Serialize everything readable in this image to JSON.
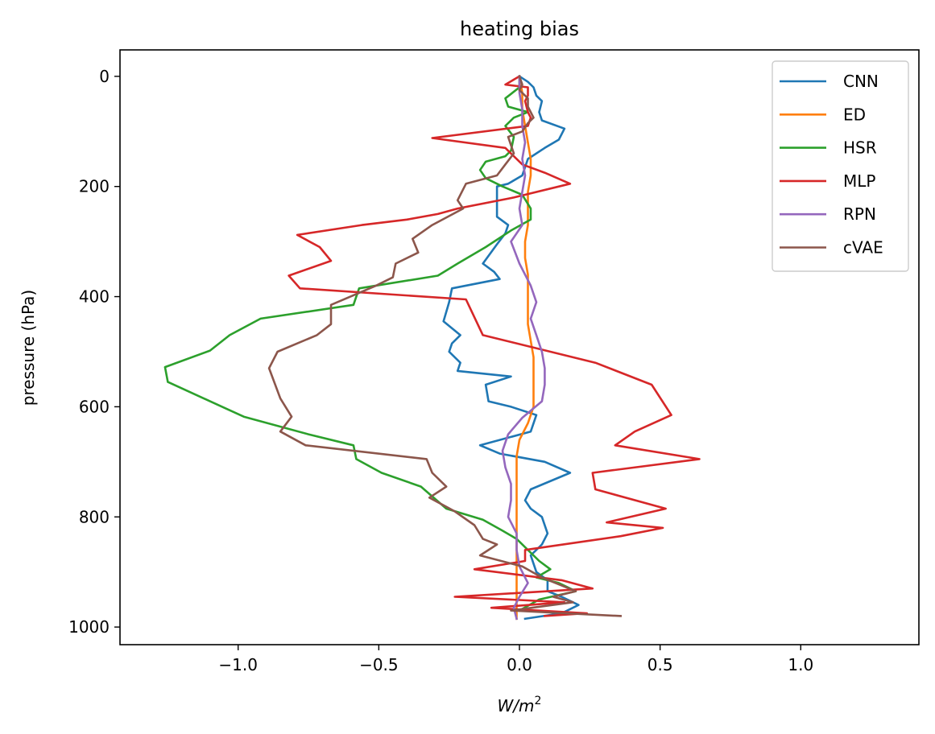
{
  "chart_data": {
    "type": "line",
    "title": "heating bias",
    "xlabel": "W/m²",
    "xlabel_parts": {
      "base": "W/m",
      "sup": "2"
    },
    "ylabel": "pressure (hPa)",
    "xlim": [
      -1.42,
      1.42
    ],
    "ylim": [
      1032,
      -48
    ],
    "y_inverted": true,
    "xticks": [
      -1.0,
      -0.5,
      0.0,
      0.5,
      1.0
    ],
    "xtick_labels": [
      "−1.0",
      "−0.5",
      "0.0",
      "0.5",
      "1.0"
    ],
    "yticks": [
      0,
      200,
      400,
      600,
      800,
      1000
    ],
    "ytick_labels": [
      "0",
      "200",
      "400",
      "600",
      "800",
      "1000"
    ],
    "grid": false,
    "legend_position": "top-right",
    "series": [
      {
        "name": "CNN",
        "color": "#1f77b4",
        "points": [
          [
            0.0,
            0
          ],
          [
            0.03,
            10
          ],
          [
            0.05,
            20
          ],
          [
            0.06,
            35
          ],
          [
            0.08,
            45
          ],
          [
            0.07,
            65
          ],
          [
            0.08,
            80
          ],
          [
            0.16,
            95
          ],
          [
            0.14,
            115
          ],
          [
            0.09,
            130
          ],
          [
            0.03,
            150
          ],
          [
            0.02,
            165
          ],
          [
            0.01,
            180
          ],
          [
            -0.04,
            195
          ],
          [
            -0.08,
            200
          ],
          [
            -0.08,
            230
          ],
          [
            -0.08,
            255
          ],
          [
            -0.04,
            270
          ],
          [
            -0.05,
            285
          ],
          [
            -0.08,
            305
          ],
          [
            -0.13,
            340
          ],
          [
            -0.09,
            355
          ],
          [
            -0.07,
            368
          ],
          [
            -0.24,
            385
          ],
          [
            -0.25,
            410
          ],
          [
            -0.27,
            445
          ],
          [
            -0.21,
            470
          ],
          [
            -0.24,
            485
          ],
          [
            -0.25,
            500
          ],
          [
            -0.21,
            520
          ],
          [
            -0.22,
            535
          ],
          [
            -0.03,
            545
          ],
          [
            -0.12,
            560
          ],
          [
            -0.11,
            590
          ],
          [
            -0.03,
            600
          ],
          [
            0.06,
            615
          ],
          [
            0.04,
            645
          ],
          [
            -0.14,
            670
          ],
          [
            -0.07,
            685
          ],
          [
            0.09,
            700
          ],
          [
            0.18,
            720
          ],
          [
            0.04,
            750
          ],
          [
            0.02,
            770
          ],
          [
            0.04,
            785
          ],
          [
            0.08,
            800
          ],
          [
            0.1,
            830
          ],
          [
            0.08,
            850
          ],
          [
            0.04,
            870
          ],
          [
            0.06,
            900
          ],
          [
            0.1,
            915
          ],
          [
            0.1,
            935
          ],
          [
            0.15,
            945
          ],
          [
            0.21,
            960
          ],
          [
            0.15,
            975
          ],
          [
            0.02,
            985
          ]
        ]
      },
      {
        "name": "ED",
        "color": "#ff7f0e",
        "points": [
          [
            0.0,
            0
          ],
          [
            0.01,
            30
          ],
          [
            0.01,
            60
          ],
          [
            0.02,
            90
          ],
          [
            0.03,
            120
          ],
          [
            0.04,
            150
          ],
          [
            0.04,
            180
          ],
          [
            0.03,
            210
          ],
          [
            0.03,
            240
          ],
          [
            0.03,
            270
          ],
          [
            0.02,
            300
          ],
          [
            0.02,
            330
          ],
          [
            0.03,
            360
          ],
          [
            0.03,
            390
          ],
          [
            0.03,
            420
          ],
          [
            0.03,
            450
          ],
          [
            0.04,
            480
          ],
          [
            0.05,
            510
          ],
          [
            0.05,
            540
          ],
          [
            0.05,
            570
          ],
          [
            0.05,
            600
          ],
          [
            0.03,
            630
          ],
          [
            0.0,
            660
          ],
          [
            -0.01,
            690
          ],
          [
            -0.01,
            720
          ],
          [
            -0.01,
            750
          ],
          [
            -0.01,
            780
          ],
          [
            -0.01,
            810
          ],
          [
            -0.01,
            840
          ],
          [
            -0.01,
            870
          ],
          [
            -0.01,
            900
          ],
          [
            -0.01,
            930
          ],
          [
            -0.01,
            960
          ],
          [
            -0.01,
            985
          ]
        ]
      },
      {
        "name": "HSR",
        "color": "#2ca02c",
        "points": [
          [
            0.0,
            0
          ],
          [
            0.0,
            20
          ],
          [
            -0.05,
            40
          ],
          [
            -0.04,
            55
          ],
          [
            0.03,
            65
          ],
          [
            -0.02,
            75
          ],
          [
            -0.05,
            90
          ],
          [
            -0.02,
            110
          ],
          [
            -0.03,
            135
          ],
          [
            -0.05,
            145
          ],
          [
            -0.12,
            155
          ],
          [
            -0.14,
            170
          ],
          [
            -0.12,
            185
          ],
          [
            -0.06,
            200
          ],
          [
            0.01,
            215
          ],
          [
            0.04,
            240
          ],
          [
            0.04,
            260
          ],
          [
            -0.03,
            280
          ],
          [
            -0.12,
            310
          ],
          [
            -0.22,
            340
          ],
          [
            -0.29,
            362
          ],
          [
            -0.57,
            385
          ],
          [
            -0.59,
            415
          ],
          [
            -0.92,
            440
          ],
          [
            -1.03,
            470
          ],
          [
            -1.1,
            498
          ],
          [
            -1.26,
            528
          ],
          [
            -1.25,
            555
          ],
          [
            -1.1,
            590
          ],
          [
            -0.98,
            618
          ],
          [
            -0.75,
            650
          ],
          [
            -0.59,
            670
          ],
          [
            -0.58,
            695
          ],
          [
            -0.49,
            720
          ],
          [
            -0.35,
            745
          ],
          [
            -0.26,
            785
          ],
          [
            -0.13,
            805
          ],
          [
            -0.06,
            825
          ],
          [
            -0.01,
            840
          ],
          [
            0.03,
            860
          ],
          [
            0.07,
            880
          ],
          [
            0.11,
            895
          ],
          [
            0.06,
            910
          ],
          [
            0.14,
            920
          ],
          [
            0.2,
            935
          ],
          [
            0.07,
            950
          ],
          [
            0.0,
            970
          ]
        ]
      },
      {
        "name": "MLP",
        "color": "#d62728",
        "points": [
          [
            0.0,
            0
          ],
          [
            -0.05,
            15
          ],
          [
            0.03,
            20
          ],
          [
            0.03,
            35
          ],
          [
            0.02,
            45
          ],
          [
            0.03,
            65
          ],
          [
            0.04,
            75
          ],
          [
            0.03,
            90
          ],
          [
            -0.31,
            112
          ],
          [
            -0.05,
            130
          ],
          [
            -0.02,
            145
          ],
          [
            0.01,
            160
          ],
          [
            0.09,
            175
          ],
          [
            0.18,
            195
          ],
          [
            -0.02,
            220
          ],
          [
            -0.22,
            240
          ],
          [
            -0.29,
            250
          ],
          [
            -0.4,
            260
          ],
          [
            -0.56,
            270
          ],
          [
            -0.79,
            288
          ],
          [
            -0.71,
            310
          ],
          [
            -0.67,
            335
          ],
          [
            -0.82,
            362
          ],
          [
            -0.78,
            385
          ],
          [
            -0.19,
            405
          ],
          [
            -0.13,
            470
          ],
          [
            0.27,
            520
          ],
          [
            0.47,
            560
          ],
          [
            0.54,
            615
          ],
          [
            0.41,
            645
          ],
          [
            0.34,
            670
          ],
          [
            0.64,
            695
          ],
          [
            0.26,
            720
          ],
          [
            0.27,
            750
          ],
          [
            0.52,
            785
          ],
          [
            0.31,
            810
          ],
          [
            0.51,
            820
          ],
          [
            0.36,
            835
          ],
          [
            0.02,
            860
          ],
          [
            0.02,
            880
          ],
          [
            -0.16,
            895
          ],
          [
            0.15,
            915
          ],
          [
            0.26,
            930
          ],
          [
            -0.23,
            945
          ],
          [
            0.16,
            955
          ],
          [
            -0.1,
            965
          ],
          [
            0.24,
            975
          ],
          [
            0.09,
            980
          ]
        ]
      },
      {
        "name": "RPN",
        "color": "#9467bd",
        "points": [
          [
            0.0,
            0
          ],
          [
            0.0,
            30
          ],
          [
            0.01,
            60
          ],
          [
            0.01,
            90
          ],
          [
            0.02,
            120
          ],
          [
            0.01,
            150
          ],
          [
            0.02,
            180
          ],
          [
            0.01,
            210
          ],
          [
            0.0,
            240
          ],
          [
            0.01,
            270
          ],
          [
            -0.03,
            300
          ],
          [
            0.0,
            340
          ],
          [
            0.04,
            380
          ],
          [
            0.06,
            410
          ],
          [
            0.04,
            440
          ],
          [
            0.06,
            470
          ],
          [
            0.08,
            500
          ],
          [
            0.09,
            530
          ],
          [
            0.09,
            560
          ],
          [
            0.08,
            590
          ],
          [
            0.01,
            620
          ],
          [
            -0.04,
            650
          ],
          [
            -0.06,
            680
          ],
          [
            -0.05,
            710
          ],
          [
            -0.03,
            740
          ],
          [
            -0.03,
            770
          ],
          [
            -0.04,
            800
          ],
          [
            -0.01,
            830
          ],
          [
            -0.01,
            860
          ],
          [
            0.0,
            890
          ],
          [
            0.03,
            920
          ],
          [
            0.0,
            945
          ],
          [
            -0.02,
            965
          ],
          [
            -0.01,
            985
          ]
        ]
      },
      {
        "name": "cVAE",
        "color": "#8c564b",
        "points": [
          [
            0.0,
            0
          ],
          [
            0.01,
            15
          ],
          [
            0.0,
            25
          ],
          [
            0.03,
            40
          ],
          [
            0.03,
            55
          ],
          [
            0.05,
            75
          ],
          [
            0.03,
            85
          ],
          [
            0.01,
            100
          ],
          [
            -0.04,
            110
          ],
          [
            -0.03,
            125
          ],
          [
            -0.02,
            140
          ],
          [
            -0.05,
            160
          ],
          [
            -0.08,
            180
          ],
          [
            -0.19,
            195
          ],
          [
            -0.22,
            225
          ],
          [
            -0.2,
            240
          ],
          [
            -0.31,
            270
          ],
          [
            -0.38,
            295
          ],
          [
            -0.36,
            320
          ],
          [
            -0.44,
            340
          ],
          [
            -0.45,
            365
          ],
          [
            -0.51,
            380
          ],
          [
            -0.67,
            415
          ],
          [
            -0.67,
            450
          ],
          [
            -0.72,
            470
          ],
          [
            -0.86,
            500
          ],
          [
            -0.89,
            530
          ],
          [
            -0.85,
            585
          ],
          [
            -0.81,
            618
          ],
          [
            -0.85,
            645
          ],
          [
            -0.76,
            670
          ],
          [
            -0.33,
            695
          ],
          [
            -0.31,
            720
          ],
          [
            -0.26,
            745
          ],
          [
            -0.32,
            765
          ],
          [
            -0.23,
            790
          ],
          [
            -0.16,
            815
          ],
          [
            -0.13,
            840
          ],
          [
            -0.08,
            850
          ],
          [
            -0.14,
            870
          ],
          [
            0.01,
            890
          ],
          [
            0.08,
            910
          ],
          [
            0.2,
            935
          ],
          [
            0.12,
            945
          ],
          [
            0.19,
            955
          ],
          [
            -0.03,
            970
          ],
          [
            0.36,
            980
          ]
        ]
      }
    ]
  }
}
